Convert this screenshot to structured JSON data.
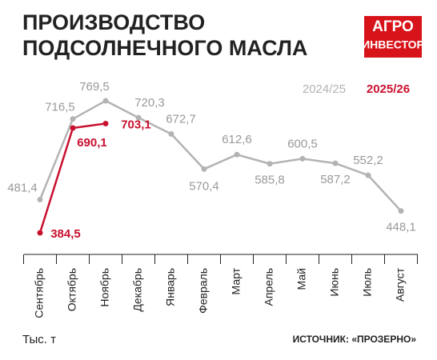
{
  "chart_data": {
    "type": "line",
    "title": [
      "ПРОИЗВОДСТВО",
      "ПОДСОЛНЕЧНОГО МАСЛА"
    ],
    "logo": [
      "АГРО",
      "ИНВЕСТОР"
    ],
    "unit": "Тыс. т",
    "source": "ИСТОЧНИК: «ПРОЗЕРНО»",
    "categories": [
      "Сентябрь",
      "Октябрь",
      "Ноябрь",
      "Декабрь",
      "Январь",
      "Февраль",
      "Март",
      "Апрель",
      "Май",
      "Июнь",
      "Июль",
      "Август"
    ],
    "series": [
      {
        "name": "2024/25",
        "color": "#b3b3b3",
        "values": [
          481.4,
          716.5,
          769.5,
          720.3,
          672.7,
          570.4,
          612.6,
          585.8,
          600.5,
          587.2,
          552.2,
          448.1
        ],
        "value_labels": [
          "481,4",
          "716,5",
          "769,5",
          "720,3",
          "672,7",
          "570,4",
          "612,6",
          "585,8",
          "600,5",
          "587,2",
          "552,2",
          "448,1"
        ]
      },
      {
        "name": "2025/26",
        "color": "#c8102e",
        "values": [
          384.5,
          690.1,
          703.1,
          null,
          null,
          null,
          null,
          null,
          null,
          null,
          null,
          null
        ],
        "value_labels": [
          "384,5",
          "690,1",
          "703,1",
          null,
          null,
          null,
          null,
          null,
          null,
          null,
          null,
          null
        ]
      }
    ]
  }
}
